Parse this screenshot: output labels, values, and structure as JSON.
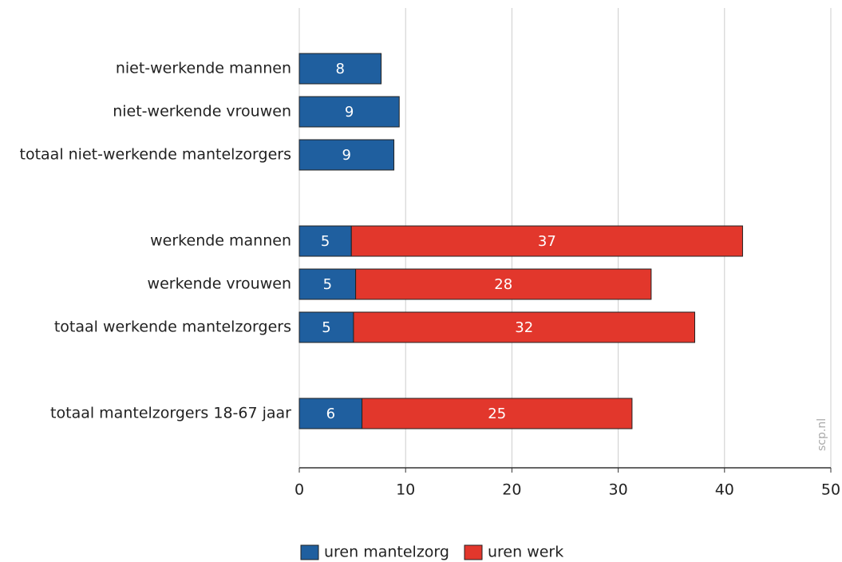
{
  "chart_data": {
    "type": "stacked-barh",
    "categories": [
      "niet-werkende mannen",
      "niet-werkende vrouwen",
      "totaal niet-werkende mantelzorgers",
      null,
      "werkende mannen",
      "werkende vrouwen",
      "totaal werkende mantelzorgers",
      null,
      "totaal mantelzorgers 18-67 jaar"
    ],
    "series": [
      {
        "name": "uren mantelzorg",
        "color": "#1f5f9f",
        "values": [
          7.7,
          9.4,
          8.9,
          null,
          4.9,
          5.3,
          5.1,
          null,
          5.9
        ],
        "value_labels": [
          "8",
          "9",
          "9",
          null,
          "5",
          "5",
          "5",
          null,
          "6"
        ]
      },
      {
        "name": "uren werk",
        "color": "#e2372c",
        "values": [
          null,
          null,
          null,
          null,
          36.8,
          27.8,
          32.1,
          null,
          25.4
        ],
        "value_labels": [
          null,
          null,
          null,
          null,
          "37",
          "28",
          "32",
          null,
          "25"
        ]
      }
    ],
    "xlim": [
      0,
      50
    ],
    "xticks": [
      0,
      10,
      20,
      30,
      40,
      50
    ],
    "grid": true,
    "watermark": "scp.nl",
    "legend": "bottom"
  }
}
